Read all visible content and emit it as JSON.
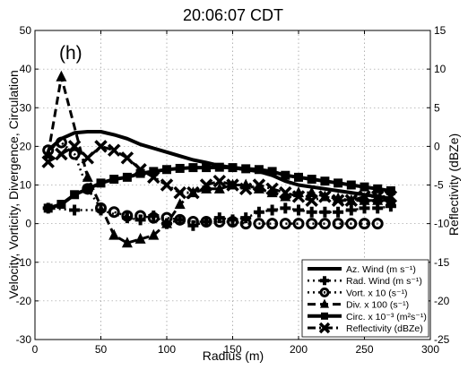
{
  "chart_data": {
    "type": "line",
    "title": "20:06:07 CDT",
    "panel_label": "(h)",
    "xlabel": "Radius (m)",
    "ylabel": "Velocity, Vorticity, Divergence, Circulation",
    "y2label": "Reflectivity (dBZe)",
    "xlim": [
      0,
      300
    ],
    "ylim": [
      -30,
      50
    ],
    "y2lim": [
      -25,
      15
    ],
    "xticks": [
      0,
      50,
      100,
      150,
      200,
      250,
      300
    ],
    "yticks": [
      -30,
      -20,
      -10,
      0,
      10,
      20,
      30,
      40,
      50
    ],
    "y2ticks": [
      -25,
      -20,
      -15,
      -10,
      -5,
      0,
      5,
      10,
      15
    ],
    "grid": true,
    "legend_position": "bottom-right",
    "series": [
      {
        "name": "Az. Wind (m s⁻¹)",
        "marker": "none",
        "linestyle": "solid",
        "axis": "left",
        "x": [
          10,
          20,
          30,
          40,
          50,
          60,
          70,
          80,
          90,
          100,
          110,
          120,
          130,
          140,
          150,
          160,
          170,
          180,
          190,
          200,
          210,
          220,
          230,
          240,
          250,
          260,
          270
        ],
        "y": [
          19,
          22,
          23.5,
          23.8,
          23.8,
          23,
          22,
          20.5,
          19.5,
          18.5,
          17.5,
          16.5,
          15.8,
          15,
          14.5,
          14,
          13.5,
          12.5,
          11,
          10,
          9.5,
          9,
          8.5,
          8,
          7.5,
          7,
          6.5
        ]
      },
      {
        "name": "Rad. Wind (m s⁻¹)",
        "marker": "plus",
        "linestyle": "dotted",
        "axis": "left",
        "x": [
          10,
          30,
          50,
          70,
          80,
          90,
          100,
          110,
          120,
          130,
          140,
          150,
          160,
          170,
          180,
          190,
          200,
          210,
          220,
          230,
          240,
          250,
          260,
          270
        ],
        "y": [
          4,
          3.5,
          3.5,
          1.5,
          1,
          2,
          0,
          1,
          -0.5,
          0.5,
          1.5,
          1,
          1.5,
          3,
          3.5,
          4,
          3.5,
          3,
          3,
          3,
          3.5,
          4,
          4,
          4.5
        ]
      },
      {
        "name": "Vort. x 10 (s⁻¹)",
        "marker": "circle",
        "linestyle": "dotted",
        "axis": "left",
        "x": [
          10,
          20,
          30,
          40,
          50,
          60,
          70,
          80,
          90,
          100,
          110,
          120,
          130,
          140,
          150,
          160,
          170,
          180,
          190,
          200,
          210,
          220,
          230,
          240,
          250,
          260
        ],
        "y": [
          19,
          21,
          18,
          9,
          4,
          3,
          2,
          2,
          1.5,
          1.5,
          1,
          0.5,
          0.5,
          0.5,
          0.5,
          0,
          0,
          0,
          0,
          0,
          0,
          0,
          0,
          0,
          0,
          0
        ]
      },
      {
        "name": "Div. x 100 (s⁻¹)",
        "marker": "triangle",
        "linestyle": "dashed",
        "axis": "left",
        "x": [
          10,
          20,
          40,
          60,
          70,
          80,
          90,
          100,
          110,
          120,
          130,
          140,
          150,
          160,
          170,
          180,
          190,
          200,
          210,
          220,
          230,
          240,
          250,
          260,
          270
        ],
        "y": [
          18,
          38,
          12,
          -3,
          -5,
          -4,
          -3,
          0,
          5,
          8,
          9,
          9,
          10,
          10,
          9,
          8,
          7,
          8,
          8,
          7,
          6.5,
          6,
          6,
          6,
          6
        ]
      },
      {
        "name": "Circ. x 10⁻³ (m²s⁻¹)",
        "marker": "square",
        "linestyle": "solid",
        "axis": "left",
        "x": [
          10,
          20,
          30,
          40,
          50,
          60,
          70,
          80,
          90,
          100,
          110,
          120,
          130,
          140,
          150,
          160,
          170,
          180,
          190,
          200,
          210,
          220,
          230,
          240,
          250,
          260,
          270
        ],
        "y": [
          4,
          5,
          7.5,
          9,
          10.5,
          11.5,
          12,
          13,
          13.5,
          14,
          14.3,
          14.5,
          14.5,
          14.6,
          14.5,
          14.2,
          14,
          13.5,
          12.5,
          12,
          11.5,
          11,
          10.5,
          10,
          9.5,
          9,
          8.5
        ]
      },
      {
        "name": "Reflectivity (dBZe)",
        "marker": "x",
        "linestyle": "dashdot",
        "axis": "right",
        "x": [
          10,
          20,
          30,
          40,
          50,
          60,
          70,
          80,
          90,
          100,
          110,
          120,
          130,
          140,
          150,
          160,
          170,
          180,
          190,
          200,
          210,
          220,
          230,
          240,
          250,
          260,
          270
        ],
        "y": [
          -2,
          -1,
          0,
          -1.5,
          0,
          -0.5,
          -1.5,
          -3,
          -4,
          -5,
          -6,
          -6,
          -5,
          -4.5,
          -5,
          -5.5,
          -5,
          -5.5,
          -6,
          -6.5,
          -7,
          -6.5,
          -7,
          -7,
          -6.5,
          -6.5,
          -6.5
        ]
      }
    ]
  }
}
